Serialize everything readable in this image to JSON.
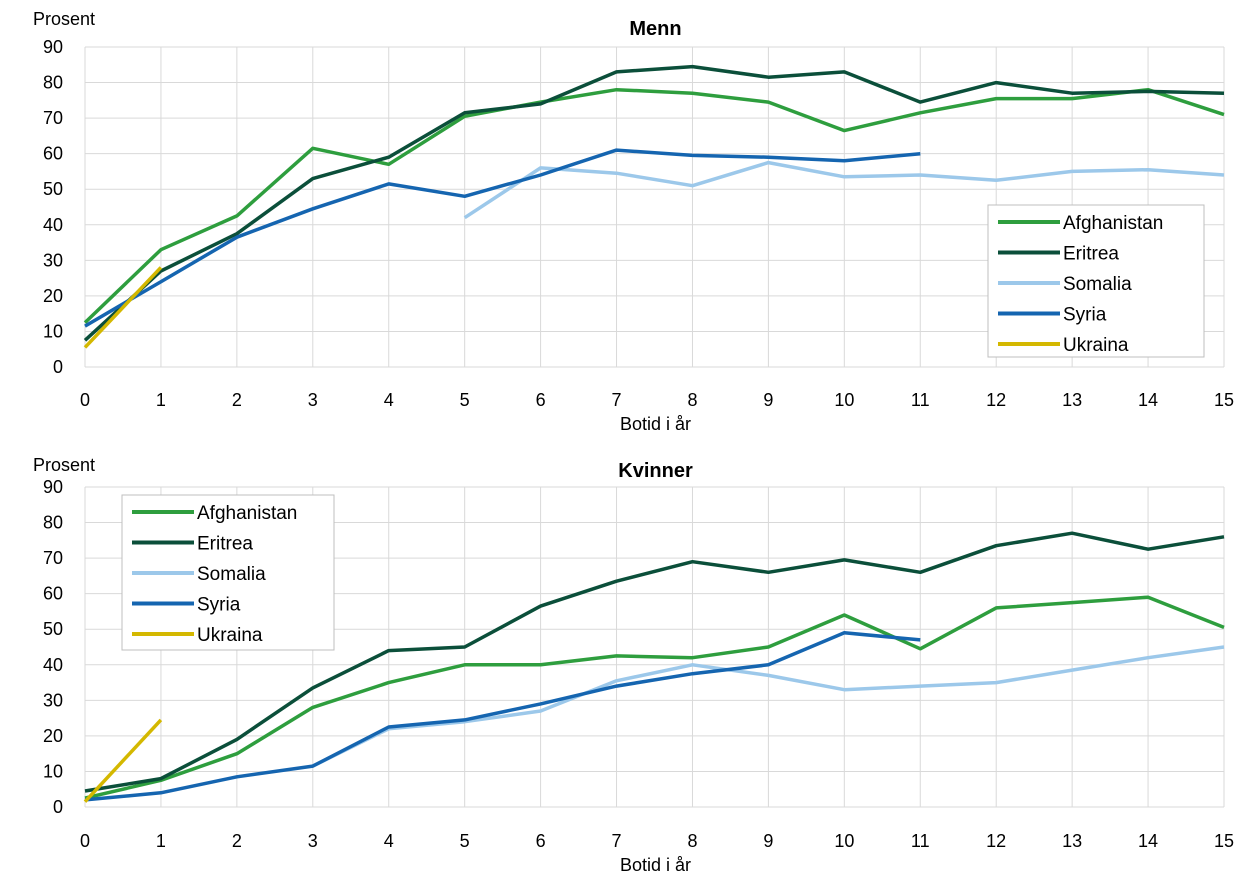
{
  "chart_data": [
    {
      "type": "line",
      "title": "Menn",
      "ylabel": "Prosent",
      "xlabel": "Botid i år",
      "ylim": [
        0,
        90
      ],
      "yticks": [
        0,
        10,
        20,
        30,
        40,
        50,
        60,
        70,
        80,
        90
      ],
      "xlim": [
        0,
        15
      ],
      "x": [
        0,
        1,
        2,
        3,
        4,
        5,
        6,
        7,
        8,
        9,
        10,
        11,
        12,
        13,
        14,
        15
      ],
      "grid": true,
      "legend_position": "bottom-right",
      "series": [
        {
          "name": "Afghanistan",
          "color": "#2e9e3e",
          "values": [
            12.5,
            33,
            42.5,
            61.5,
            57,
            70.5,
            74.5,
            78,
            77,
            74.5,
            66.5,
            71.5,
            75.5,
            75.5,
            78,
            71
          ]
        },
        {
          "name": "Eritrea",
          "color": "#0b4f3a",
          "values": [
            7.5,
            27,
            37.5,
            53,
            59,
            71.5,
            74,
            83,
            84.5,
            81.5,
            83,
            74.5,
            80,
            77,
            77.5,
            77
          ]
        },
        {
          "name": "Somalia",
          "color": "#9cc8ea",
          "values": [
            null,
            null,
            null,
            null,
            null,
            42,
            56,
            54.5,
            51,
            57.5,
            53.5,
            54,
            52.5,
            55,
            55.5,
            54
          ]
        },
        {
          "name": "Syria",
          "color": "#1565b0",
          "values": [
            11.5,
            24,
            36.5,
            44.5,
            51.5,
            48,
            54,
            61,
            59.5,
            59,
            58,
            60,
            null,
            null,
            null,
            null
          ]
        },
        {
          "name": "Ukraina",
          "color": "#d4b800",
          "values": [
            5.5,
            28,
            null,
            null,
            null,
            null,
            null,
            null,
            null,
            null,
            null,
            null,
            null,
            null,
            null,
            null
          ]
        }
      ]
    },
    {
      "type": "line",
      "title": "Kvinner",
      "ylabel": "Prosent",
      "xlabel": "Botid i år",
      "ylim": [
        0,
        90
      ],
      "yticks": [
        0,
        10,
        20,
        30,
        40,
        50,
        60,
        70,
        80,
        90
      ],
      "xlim": [
        0,
        15
      ],
      "x": [
        0,
        1,
        2,
        3,
        4,
        5,
        6,
        7,
        8,
        9,
        10,
        11,
        12,
        13,
        14,
        15
      ],
      "grid": true,
      "legend_position": "top-left",
      "series": [
        {
          "name": "Afghanistan",
          "color": "#2e9e3e",
          "values": [
            2.5,
            7.5,
            15,
            28,
            35,
            40,
            40,
            42.5,
            42,
            45,
            54,
            44.5,
            56,
            57.5,
            59,
            50.5
          ]
        },
        {
          "name": "Eritrea",
          "color": "#0b4f3a",
          "values": [
            4.5,
            8,
            19,
            33.5,
            44,
            45,
            56.5,
            63.5,
            69,
            66,
            69.5,
            66,
            73.5,
            77,
            72.5,
            76
          ]
        },
        {
          "name": "Somalia",
          "color": "#9cc8ea",
          "values": [
            null,
            null,
            null,
            11.5,
            22,
            24,
            27,
            35.5,
            40,
            37,
            33,
            34,
            35,
            38.5,
            42,
            45
          ]
        },
        {
          "name": "Syria",
          "color": "#1565b0",
          "values": [
            2,
            4,
            8.5,
            11.5,
            22.5,
            24.5,
            29,
            34,
            37.5,
            40,
            49,
            47,
            null,
            null,
            null,
            null
          ]
        },
        {
          "name": "Ukraina",
          "color": "#d4b800",
          "values": [
            1.5,
            24.5,
            null,
            null,
            null,
            null,
            null,
            null,
            null,
            null,
            null,
            null,
            null,
            null,
            null,
            null
          ]
        }
      ]
    }
  ]
}
